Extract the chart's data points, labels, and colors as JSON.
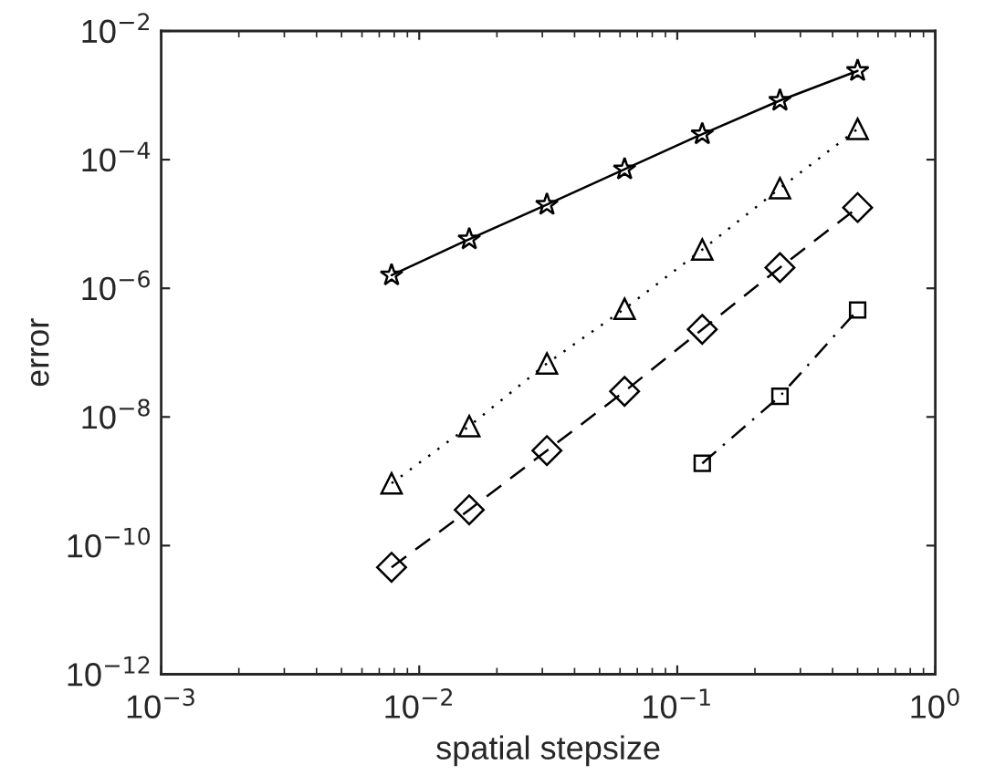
{
  "chart_data": {
    "type": "line",
    "xlabel": "spatial stepsize",
    "ylabel": "error",
    "log": "xy",
    "grid": false,
    "x": [
      0.0078125,
      0.015625,
      0.03125,
      0.0625,
      0.125,
      0.25,
      0.5
    ],
    "xlim": [
      0.001,
      1
    ],
    "ylim": [
      1e-12,
      0.01
    ],
    "xticks": [
      {
        "value": 0.001,
        "label": "10$^{−3}$"
      },
      {
        "value": 0.01,
        "label": "10$^{−2}$"
      },
      {
        "value": 0.1,
        "label": "10$^{−1}$"
      },
      {
        "value": 1,
        "label": "10$^{0}$"
      }
    ],
    "yticks": [
      {
        "value": 1e-12,
        "label": "10$^{−12}$"
      },
      {
        "value": 1e-10,
        "label": "10$^{−10}$"
      },
      {
        "value": 1e-08,
        "label": "10$^{−8}$"
      },
      {
        "value": 1e-06,
        "label": "10$^{−6}$"
      },
      {
        "value": 0.0001,
        "label": "10$^{−4}$"
      },
      {
        "value": 0.01,
        "label": "10$^{−2}$"
      }
    ],
    "series": [
      {
        "color": "#000000",
        "marker": "star",
        "line_style": "solid",
        "values": [
          1.6e-06,
          5.8e-06,
          2e-05,
          7.1e-05,
          0.00025,
          0.00083,
          0.0024
        ]
      },
      {
        "color": "#000000",
        "marker": "triangle",
        "line_style": "dotted",
        "values": [
          9.3e-10,
          7.2e-09,
          6.8e-08,
          4.8e-07,
          4e-06,
          3.6e-05,
          0.0003
        ]
      },
      {
        "color": "#000000",
        "marker": "diamond",
        "line_style": "dashed",
        "values": [
          4.6e-11,
          3.6e-10,
          3e-09,
          2.5e-08,
          2.3e-07,
          2.1e-06,
          1.8e-05
        ]
      },
      {
        "color": "#000000",
        "marker": "square",
        "line_style": "dashdot",
        "values": [
          null,
          null,
          null,
          null,
          1.9e-09,
          2.1e-08,
          4.6e-07
        ]
      }
    ]
  }
}
